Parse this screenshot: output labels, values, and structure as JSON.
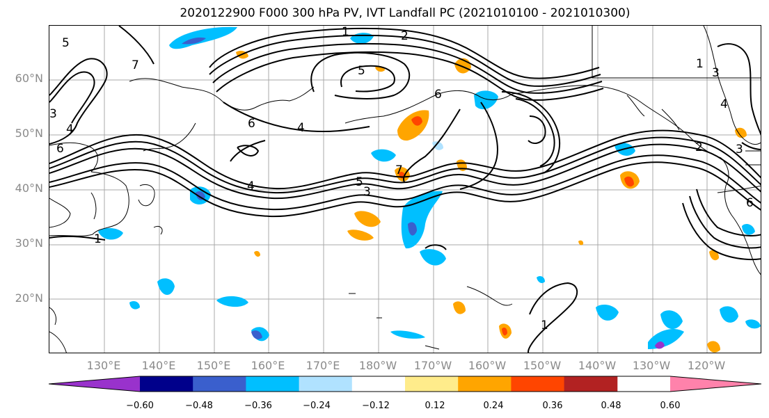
{
  "title": "2020122900 F000 300 hPa PV, IVT Landfall PC (2021010100 - 2021010300)",
  "lat_labels": [
    "60°N",
    "50°N",
    "40°N",
    "30°N",
    "20°N"
  ],
  "lon_labels": [
    "130°E",
    "140°E",
    "150°E",
    "160°E",
    "170°E",
    "180°W",
    "170°W",
    "160°W",
    "150°W",
    "140°W",
    "130°W",
    "120°W"
  ],
  "colorbar": {
    "ticks": [
      "−0.60",
      "−0.48",
      "−0.36",
      "−0.24",
      "−0.12",
      "0.12",
      "0.24",
      "0.36",
      "0.48",
      "0.60"
    ],
    "colors": [
      "#9932cc",
      "#00008b",
      "#3a5fcd",
      "#00bfff",
      "#b0e2ff",
      "#ffffff",
      "#ffec8b",
      "#ffa500",
      "#ff4500",
      "#b22222",
      "#ff82ab"
    ]
  },
  "contour_labels": [
    "5",
    "7",
    "1",
    "2",
    "5",
    "6",
    "4",
    "6",
    "4",
    "4",
    "5",
    "3",
    "7",
    "1",
    "6",
    "3",
    "1",
    "2",
    "3",
    "6",
    "1",
    "3",
    "4"
  ],
  "legend": {
    "shading": "IVT Landfall PC",
    "contours": "300 hPa PV"
  },
  "map_extent": {
    "lon_min": 120,
    "lon_max": 250,
    "lat_min": 10,
    "lat_max": 70
  }
}
